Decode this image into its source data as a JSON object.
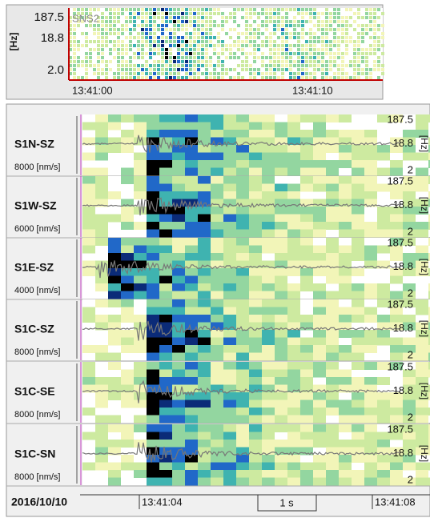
{
  "overview": {
    "unit": "[Hz]",
    "freq_labels": [
      "187.5",
      "18.8",
      "2.0"
    ],
    "station": "SNS2",
    "time_labels": [
      "13:41:00",
      "13:41:10"
    ]
  },
  "panels": [
    {
      "name": "S1N-SZ",
      "scale": "8000 [nm/s]",
      "freq_labels": [
        "187.5",
        "18.8",
        "2"
      ],
      "unit": "[Hz]"
    },
    {
      "name": "S1W-SZ",
      "scale": "6000 [nm/s]",
      "freq_labels": [
        "187.5",
        "18.8",
        "2"
      ],
      "unit": "[Hz]"
    },
    {
      "name": "S1E-SZ",
      "scale": "4000 [nm/s]",
      "freq_labels": [
        "187.5",
        "18.8",
        "2"
      ],
      "unit": "[Hz]"
    },
    {
      "name": "S1C-SZ",
      "scale": "8000 [nm/s]",
      "freq_labels": [
        "187.5",
        "18.8",
        "2"
      ],
      "unit": "[Hz]"
    },
    {
      "name": "S1C-SE",
      "scale": "8000 [nm/s]",
      "freq_labels": [
        "187.5",
        "18.8",
        "2"
      ],
      "unit": "[Hz]"
    },
    {
      "name": "S1C-SN",
      "scale": "8000 [nm/s]",
      "freq_labels": [
        "187.5",
        "18.8",
        "2"
      ],
      "unit": "[Hz]"
    }
  ],
  "footer": {
    "date": "2016/10/10",
    "time_labels": [
      "13:41:04",
      "13:41:08"
    ],
    "scale_bar": "1 s"
  }
}
